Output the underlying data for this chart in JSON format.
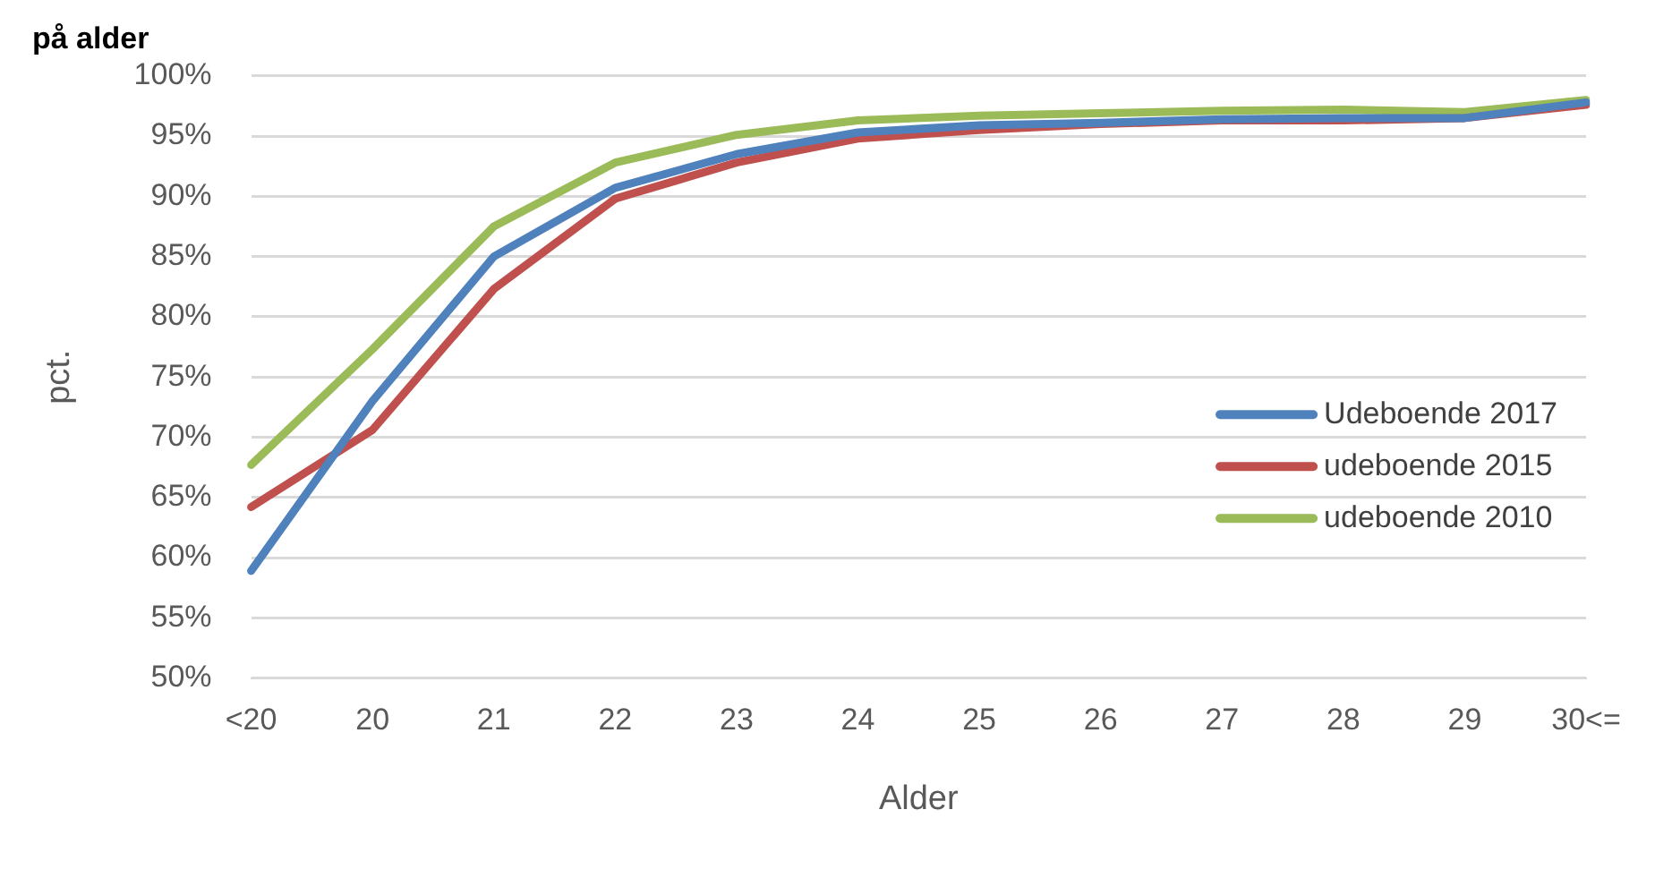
{
  "chart_data": {
    "type": "line",
    "title": "på alder",
    "xlabel": "Alder",
    "ylabel": "pct.",
    "categories": [
      "<20",
      "20",
      "21",
      "22",
      "23",
      "24",
      "25",
      "26",
      "27",
      "28",
      "29",
      "30<="
    ],
    "series": [
      {
        "name": "Udeboende 2017",
        "color": "#4f81bd",
        "values": [
          58.9,
          73,
          85,
          90.7,
          93.5,
          95.3,
          95.9,
          96.1,
          96.4,
          96.5,
          96.5,
          97.8
        ]
      },
      {
        "name": "udeboende 2015",
        "color": "#c0504d",
        "values": [
          64.2,
          70.6,
          82.3,
          89.8,
          92.8,
          94.8,
          95.5,
          96,
          96.3,
          96.3,
          96.5,
          97.6
        ]
      },
      {
        "name": "udeboende 2010",
        "color": "#9bbb59",
        "values": [
          67.7,
          77.3,
          87.5,
          92.8,
          95.1,
          96.3,
          96.7,
          96.9,
          97.1,
          97.2,
          97,
          98
        ]
      }
    ],
    "ylim": [
      50,
      100
    ],
    "yticks": [
      {
        "value": 50,
        "label": "50%"
      },
      {
        "value": 55,
        "label": "55%"
      },
      {
        "value": 60,
        "label": "60%"
      },
      {
        "value": 65,
        "label": "65%"
      },
      {
        "value": 70,
        "label": "70%"
      },
      {
        "value": 75,
        "label": "75%"
      },
      {
        "value": 80,
        "label": "80%"
      },
      {
        "value": 85,
        "label": "85%"
      },
      {
        "value": 90,
        "label": "90%"
      },
      {
        "value": 95,
        "label": "95%"
      },
      {
        "value": 100,
        "label": "100%"
      }
    ],
    "grid": "y",
    "legend": "right",
    "marker": "none",
    "line_style": "solid"
  }
}
